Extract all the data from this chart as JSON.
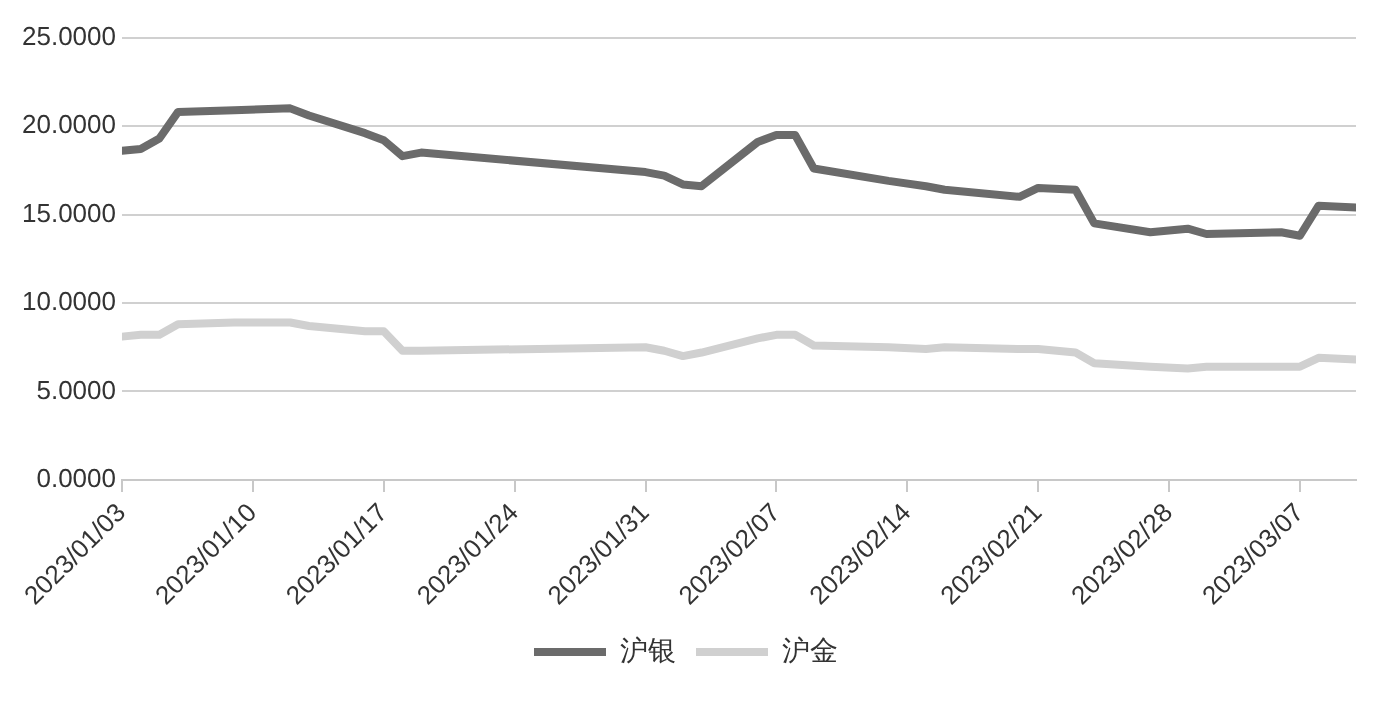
{
  "chart_data": {
    "type": "line",
    "x": [
      "2023-01-03",
      "2023-01-04",
      "2023-01-05",
      "2023-01-06",
      "2023-01-09",
      "2023-01-12",
      "2023-01-13",
      "2023-01-16",
      "2023-01-17",
      "2023-01-18",
      "2023-01-19",
      "2023-01-31",
      "2023-02-01",
      "2023-02-02",
      "2023-02-03",
      "2023-02-06",
      "2023-02-07",
      "2023-02-08",
      "2023-02-09",
      "2023-02-13",
      "2023-02-15",
      "2023-02-16",
      "2023-02-20",
      "2023-02-21",
      "2023-02-23",
      "2023-02-24",
      "2023-02-27",
      "2023-03-01",
      "2023-03-02",
      "2023-03-06",
      "2023-03-07",
      "2023-03-08",
      "2023-03-10"
    ],
    "series": [
      {
        "name": "沪银",
        "color": "#6b6b6b",
        "values": [
          18.6,
          18.7,
          19.3,
          20.8,
          20.9,
          21.0,
          20.6,
          19.6,
          19.2,
          18.3,
          18.5,
          17.4,
          17.2,
          16.7,
          16.6,
          19.1,
          19.5,
          19.5,
          17.6,
          16.9,
          16.6,
          16.4,
          16.0,
          16.5,
          16.4,
          14.5,
          14.0,
          14.2,
          13.9,
          14.0,
          13.8,
          15.5,
          15.4
        ]
      },
      {
        "name": "沪金",
        "color": "#d0d0d0",
        "values": [
          8.1,
          8.2,
          8.2,
          8.8,
          8.9,
          8.9,
          8.7,
          8.4,
          8.4,
          7.3,
          7.3,
          7.5,
          7.3,
          7.0,
          7.2,
          8.0,
          8.2,
          8.2,
          7.6,
          7.5,
          7.4,
          7.5,
          7.4,
          7.4,
          7.2,
          6.6,
          6.4,
          6.3,
          6.4,
          6.4,
          6.4,
          6.9,
          6.8
        ]
      }
    ],
    "xlim": [
      "2023-01-03",
      "2023-03-10"
    ],
    "xticks": [
      {
        "value": "2023-01-03",
        "label": "2023/01/03"
      },
      {
        "value": "2023-01-10",
        "label": "2023/01/10"
      },
      {
        "value": "2023-01-17",
        "label": "2023/01/17"
      },
      {
        "value": "2023-01-24",
        "label": "2023/01/24"
      },
      {
        "value": "2023-01-31",
        "label": "2023/01/31"
      },
      {
        "value": "2023-02-07",
        "label": "2023/02/07"
      },
      {
        "value": "2023-02-14",
        "label": "2023/02/14"
      },
      {
        "value": "2023-02-21",
        "label": "2023/02/21"
      },
      {
        "value": "2023-02-28",
        "label": "2023/02/28"
      },
      {
        "value": "2023-03-07",
        "label": "2023/03/07"
      }
    ],
    "ylim": [
      0,
      25
    ],
    "yticks": [
      {
        "value": 0,
        "label": "0.0000"
      },
      {
        "value": 5,
        "label": "5.0000"
      },
      {
        "value": 10,
        "label": "10.0000"
      },
      {
        "value": 15,
        "label": "15.0000"
      },
      {
        "value": 20,
        "label": "20.0000"
      },
      {
        "value": 25,
        "label": "25.0000"
      }
    ],
    "grid": "y",
    "legend": "bottom",
    "marker": "none",
    "line_style": "solid"
  }
}
